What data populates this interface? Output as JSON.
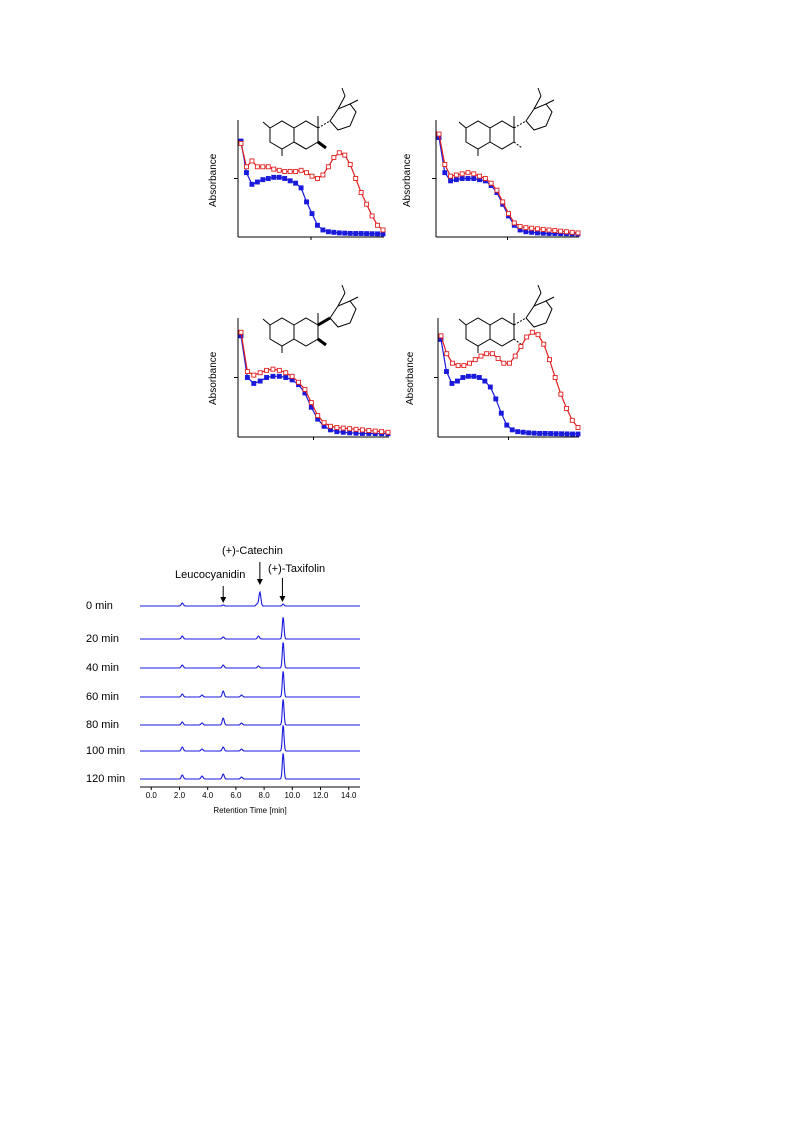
{
  "chart_data": [
    {
      "type": "line",
      "ylabel": "Absorbance",
      "series": [
        {
          "color": "#1a1adc",
          "marker": "filled-square",
          "values": [
            0.82,
            0.55,
            0.45,
            0.47,
            0.49,
            0.5,
            0.51,
            0.51,
            0.5,
            0.48,
            0.46,
            0.42,
            0.3,
            0.2,
            0.1,
            0.06,
            0.045,
            0.04,
            0.035,
            0.033,
            0.031,
            0.03,
            0.03,
            0.029,
            0.028,
            0.027,
            0.026
          ]
        },
        {
          "color": "#e02020",
          "marker": "open-square",
          "values": [
            0.8,
            0.6,
            0.65,
            0.6,
            0.6,
            0.6,
            0.58,
            0.57,
            0.56,
            0.56,
            0.56,
            0.57,
            0.55,
            0.52,
            0.5,
            0.53,
            0.6,
            0.68,
            0.72,
            0.7,
            0.62,
            0.5,
            0.38,
            0.28,
            0.18,
            0.1,
            0.06
          ]
        }
      ]
    },
    {
      "type": "line",
      "ylabel": "Absorbance",
      "series": [
        {
          "color": "#1a1adc",
          "marker": "filled-square",
          "values": [
            0.85,
            0.55,
            0.48,
            0.49,
            0.5,
            0.5,
            0.5,
            0.49,
            0.48,
            0.44,
            0.38,
            0.28,
            0.18,
            0.1,
            0.06,
            0.045,
            0.04,
            0.035,
            0.032,
            0.03,
            0.03,
            0.029,
            0.028,
            0.027,
            0.026
          ]
        },
        {
          "color": "#e02020",
          "marker": "open-square",
          "values": [
            0.88,
            0.62,
            0.52,
            0.53,
            0.54,
            0.55,
            0.54,
            0.52,
            0.5,
            0.46,
            0.4,
            0.3,
            0.2,
            0.12,
            0.09,
            0.08,
            0.075,
            0.07,
            0.065,
            0.06,
            0.055,
            0.05,
            0.045,
            0.04,
            0.035
          ]
        }
      ]
    },
    {
      "type": "line",
      "ylabel": "Absorbance",
      "series": [
        {
          "color": "#1a1adc",
          "marker": "filled-square",
          "values": [
            0.85,
            0.5,
            0.45,
            0.47,
            0.5,
            0.51,
            0.51,
            0.5,
            0.48,
            0.44,
            0.37,
            0.25,
            0.15,
            0.09,
            0.06,
            0.045,
            0.04,
            0.035,
            0.032,
            0.03,
            0.03,
            0.029,
            0.028,
            0.027
          ]
        },
        {
          "color": "#e02020",
          "marker": "open-square",
          "values": [
            0.88,
            0.55,
            0.52,
            0.54,
            0.56,
            0.57,
            0.56,
            0.54,
            0.51,
            0.46,
            0.4,
            0.29,
            0.18,
            0.12,
            0.09,
            0.08,
            0.075,
            0.07,
            0.065,
            0.06,
            0.055,
            0.05,
            0.045,
            0.04
          ]
        }
      ]
    },
    {
      "type": "line",
      "ylabel": "Absorbance",
      "series": [
        {
          "color": "#1a1adc",
          "marker": "filled-square",
          "values": [
            0.82,
            0.55,
            0.45,
            0.47,
            0.5,
            0.51,
            0.51,
            0.5,
            0.47,
            0.42,
            0.32,
            0.2,
            0.1,
            0.06,
            0.045,
            0.04,
            0.035,
            0.032,
            0.03,
            0.03,
            0.029,
            0.028,
            0.027,
            0.026,
            0.025,
            0.025
          ]
        },
        {
          "color": "#e02020",
          "marker": "open-square",
          "values": [
            0.85,
            0.7,
            0.62,
            0.6,
            0.6,
            0.62,
            0.65,
            0.68,
            0.7,
            0.7,
            0.66,
            0.62,
            0.62,
            0.68,
            0.76,
            0.84,
            0.88,
            0.86,
            0.78,
            0.65,
            0.5,
            0.36,
            0.24,
            0.14,
            0.08
          ]
        }
      ]
    },
    {
      "type": "line",
      "xlabel": "Retention Time [min]",
      "xlim": [
        -0.8,
        14.8
      ],
      "xticks": [
        "0.0",
        "2.0",
        "4.0",
        "6.0",
        "8.0",
        "10.0",
        "12.0",
        "14.0"
      ],
      "peak_labels": [
        {
          "text": "(+)-Catechin",
          "x": 7.7
        },
        {
          "text": "Leucocyanidin",
          "x": 5.1
        },
        {
          "text": "(+)-Taxifolin",
          "x": 9.3
        }
      ],
      "color": "#1a1adc",
      "series": [
        {
          "name": "0 min",
          "peaks": [
            [
              2.2,
              3
            ],
            [
              5.1,
              1
            ],
            [
              7.5,
              2
            ],
            [
              7.7,
              14
            ],
            [
              9.35,
              2
            ]
          ]
        },
        {
          "name": "20 min",
          "peaks": [
            [
              2.2,
              3
            ],
            [
              5.1,
              2
            ],
            [
              7.6,
              3
            ],
            [
              9.35,
              22
            ]
          ]
        },
        {
          "name": "40 min",
          "peaks": [
            [
              2.2,
              3
            ],
            [
              5.1,
              3
            ],
            [
              7.6,
              2
            ],
            [
              9.35,
              26
            ]
          ]
        },
        {
          "name": "60 min",
          "peaks": [
            [
              2.2,
              3
            ],
            [
              3.6,
              2
            ],
            [
              5.1,
              6
            ],
            [
              6.4,
              2
            ],
            [
              9.35,
              26
            ]
          ]
        },
        {
          "name": "80 min",
          "peaks": [
            [
              2.2,
              3
            ],
            [
              3.6,
              2
            ],
            [
              5.1,
              7
            ],
            [
              6.4,
              2
            ],
            [
              9.35,
              26
            ]
          ]
        },
        {
          "name": "100 min",
          "peaks": [
            [
              2.2,
              4
            ],
            [
              3.6,
              2
            ],
            [
              5.1,
              4
            ],
            [
              6.4,
              2
            ],
            [
              9.35,
              26
            ]
          ]
        },
        {
          "name": "120 min",
          "peaks": [
            [
              2.2,
              4
            ],
            [
              3.6,
              3
            ],
            [
              5.1,
              5
            ],
            [
              6.4,
              2
            ],
            [
              9.35,
              26
            ]
          ]
        }
      ]
    }
  ]
}
